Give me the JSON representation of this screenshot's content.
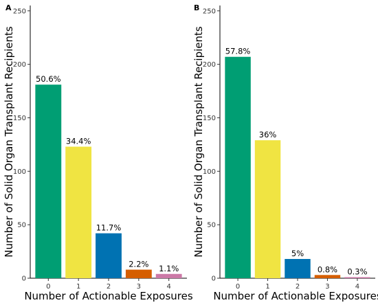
{
  "chart_data": [
    {
      "panel": "A",
      "type": "bar",
      "categories": [
        "0",
        "1",
        "2",
        "3",
        "4"
      ],
      "values": [
        181,
        123,
        42,
        8,
        4
      ],
      "data_labels": [
        "50.6%",
        "34.4%",
        "11.7%",
        "2.2%",
        "1.1%"
      ],
      "colors": [
        "#009E73",
        "#F0E442",
        "#0072B2",
        "#D55E00",
        "#CC79A7"
      ],
      "xlabel": "Number of Actionable Exposures",
      "ylabel": "Number of Solid Organ Transplant Recipients",
      "ylim": [
        0,
        255
      ],
      "yticks": [
        0,
        50,
        100,
        150,
        200,
        250
      ],
      "grid": false,
      "legend": "none"
    },
    {
      "panel": "B",
      "type": "bar",
      "categories": [
        "0",
        "1",
        "2",
        "3",
        "4"
      ],
      "values": [
        207,
        129,
        18,
        3,
        1
      ],
      "data_labels": [
        "57.8%",
        "36%",
        "5%",
        "0.8%",
        "0.3%"
      ],
      "colors": [
        "#009E73",
        "#F0E442",
        "#0072B2",
        "#D55E00",
        "#CC79A7"
      ],
      "xlabel": "Number of Actionable Exposures",
      "ylabel": "Number of Solid Organ Transplant Recipients",
      "ylim": [
        0,
        255
      ],
      "yticks": [
        0,
        50,
        100,
        150,
        200,
        250
      ],
      "grid": false,
      "legend": "none"
    }
  ]
}
